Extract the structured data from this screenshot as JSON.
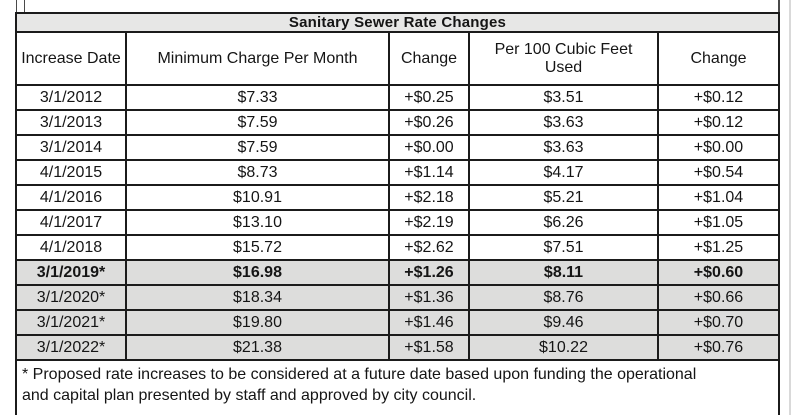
{
  "table": {
    "title": "Sanitary Sewer Rate Changes",
    "columns": [
      "Increase Date",
      "Minimum Charge Per Month",
      "Change",
      "Per 100 Cubic Feet Used",
      "Change"
    ],
    "rows": [
      {
        "cells": [
          "3/1/2012",
          "$7.33",
          "+$0.25",
          "$3.51",
          "+$0.12"
        ],
        "shaded": false,
        "bold": false
      },
      {
        "cells": [
          "3/1/2013",
          "$7.59",
          "+$0.26",
          "$3.63",
          "+$0.12"
        ],
        "shaded": false,
        "bold": false
      },
      {
        "cells": [
          "3/1/2014",
          "$7.59",
          "+$0.00",
          "$3.63",
          "+$0.00"
        ],
        "shaded": false,
        "bold": false
      },
      {
        "cells": [
          "4/1/2015",
          "$8.73",
          "+$1.14",
          "$4.17",
          "+$0.54"
        ],
        "shaded": false,
        "bold": false
      },
      {
        "cells": [
          "4/1/2016",
          "$10.91",
          "+$2.18",
          "$5.21",
          "+$1.04"
        ],
        "shaded": false,
        "bold": false
      },
      {
        "cells": [
          "4/1/2017",
          "$13.10",
          "+$2.19",
          "$6.26",
          "+$1.05"
        ],
        "shaded": false,
        "bold": false
      },
      {
        "cells": [
          "4/1/2018",
          "$15.72",
          "+$2.62",
          "$7.51",
          "+$1.25"
        ],
        "shaded": false,
        "bold": false
      },
      {
        "cells": [
          "3/1/2019*",
          "$16.98",
          "+$1.26",
          "$8.11",
          "+$0.60"
        ],
        "shaded": true,
        "bold": true
      },
      {
        "cells": [
          "3/1/2020*",
          "$18.34",
          "+$1.36",
          "$8.76",
          "+$0.66"
        ],
        "shaded": true,
        "bold": false
      },
      {
        "cells": [
          "3/1/2021*",
          "$19.80",
          "+$1.46",
          "$9.46",
          "+$0.70"
        ],
        "shaded": true,
        "bold": false
      },
      {
        "cells": [
          "3/1/2022*",
          "$21.38",
          "+$1.58",
          "$10.22",
          "+$0.76"
        ],
        "shaded": true,
        "bold": false
      }
    ],
    "footnote": "* Proposed rate increases to be considered at a future date based upon funding the operational and capital plan presented by staff and approved by city council.",
    "colors": {
      "title_bg": "#e7e7e6",
      "shaded_row_bg": "#dddddc",
      "border": "#1b1b1b"
    }
  }
}
